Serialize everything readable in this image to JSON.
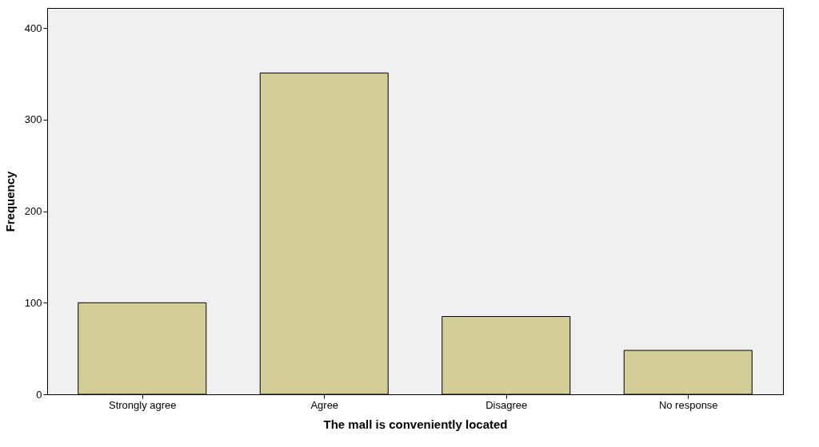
{
  "chart_data": {
    "type": "bar",
    "xlabel": "The mall is conveniently located",
    "ylabel": "Frequency",
    "categories": [
      "Strongly agree",
      "Agree",
      "Disagree",
      "No response"
    ],
    "values": [
      100,
      351,
      85,
      48
    ],
    "color": "#d3ce97",
    "ylim": [
      0,
      422
    ],
    "yticks": [
      0,
      100,
      200,
      300,
      400
    ],
    "grid": false
  }
}
